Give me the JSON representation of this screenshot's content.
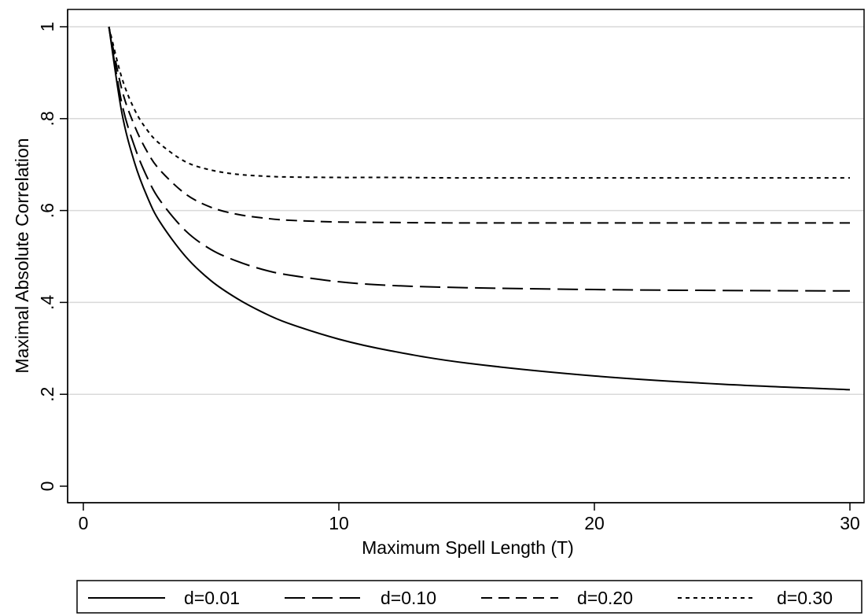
{
  "chart_data": {
    "type": "line",
    "title": "",
    "xlabel": "Maximum Spell Length (T)",
    "ylabel": "Maximal Absolute Correlation",
    "xlim": [
      0,
      30
    ],
    "ylim": [
      0,
      1
    ],
    "x_ticks": [
      0,
      10,
      20,
      30
    ],
    "x_tick_labels": [
      "0",
      "10",
      "20",
      "30"
    ],
    "y_ticks": [
      0,
      0.2,
      0.4,
      0.6,
      0.8,
      1
    ],
    "y_tick_labels": [
      "0",
      ".2",
      ".4",
      ".6",
      ".8",
      "1"
    ],
    "grid": "horizontal",
    "legend_position": "bottom",
    "x": [
      1,
      1.5,
      2,
      2.5,
      3,
      4,
      5,
      6,
      7,
      8,
      10,
      12,
      15,
      20,
      25,
      30
    ],
    "series": [
      {
        "name": "d=0.01",
        "style": "solid",
        "values": [
          1.0,
          0.815,
          0.705,
          0.63,
          0.575,
          0.5,
          0.447,
          0.409,
          0.379,
          0.355,
          0.32,
          0.295,
          0.268,
          0.24,
          0.222,
          0.21
        ]
      },
      {
        "name": "d=0.10",
        "style": "longdash",
        "values": [
          1.0,
          0.835,
          0.74,
          0.672,
          0.622,
          0.556,
          0.515,
          0.49,
          0.472,
          0.46,
          0.445,
          0.437,
          0.432,
          0.428,
          0.426,
          0.425
        ]
      },
      {
        "name": "d=0.20",
        "style": "dash",
        "values": [
          1.0,
          0.865,
          0.785,
          0.728,
          0.688,
          0.636,
          0.607,
          0.592,
          0.584,
          0.579,
          0.575,
          0.574,
          0.573,
          0.573,
          0.573,
          0.573
        ]
      },
      {
        "name": "d=0.30",
        "style": "shortdash",
        "values": [
          1.0,
          0.89,
          0.82,
          0.775,
          0.745,
          0.706,
          0.688,
          0.679,
          0.675,
          0.673,
          0.672,
          0.672,
          0.671,
          0.671,
          0.671,
          0.671
        ]
      }
    ]
  }
}
